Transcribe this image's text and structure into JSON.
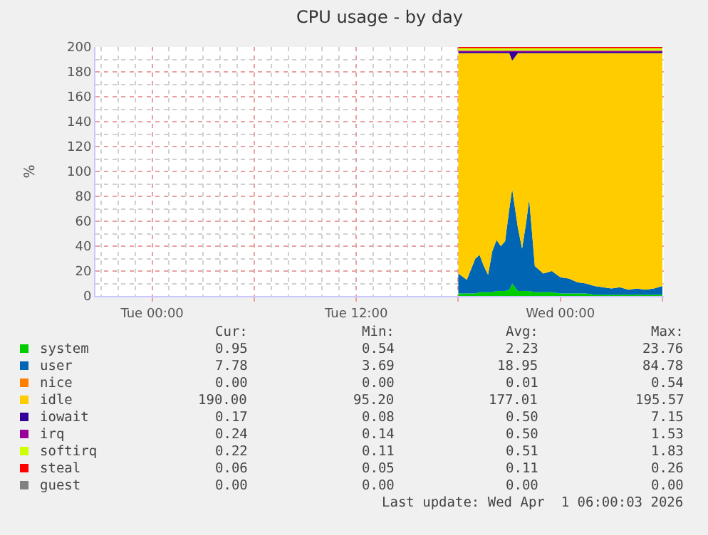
{
  "chart_data": {
    "type": "area",
    "title": "CPU usage - by day",
    "ylabel": "%",
    "stacked": true,
    "grid": true,
    "legend": "bottom",
    "x": [
      "2026-03-31T18:00",
      "2026-03-31T18:30",
      "2026-03-31T19:00",
      "2026-03-31T19:15",
      "2026-03-31T19:30",
      "2026-03-31T19:45",
      "2026-03-31T20:00",
      "2026-03-31T20:15",
      "2026-03-31T20:30",
      "2026-03-31T20:45",
      "2026-03-31T21:00",
      "2026-03-31T21:10",
      "2026-03-31T21:30",
      "2026-03-31T21:45",
      "2026-03-31T22:00",
      "2026-03-31T22:10",
      "2026-03-31T22:30",
      "2026-03-31T23:00",
      "2026-03-31T23:30",
      "2026-04-01T00:00",
      "2026-04-01T00:30",
      "2026-04-01T01:00",
      "2026-04-01T01:30",
      "2026-04-01T02:00",
      "2026-04-01T02:30",
      "2026-04-01T03:00",
      "2026-04-01T03:30",
      "2026-04-01T04:00",
      "2026-04-01T04:30",
      "2026-04-01T05:00",
      "2026-04-01T05:30",
      "2026-04-01T06:00"
    ],
    "xlim": [
      "2026-03-30T20:40",
      "2026-04-01T06:05"
    ],
    "xticks": [
      {
        "value": "2026-03-31T00:00",
        "label": "Tue 00:00"
      },
      {
        "value": "2026-03-31T06:00",
        "label": null
      },
      {
        "value": "2026-03-31T12:00",
        "label": "Tue 12:00"
      },
      {
        "value": "2026-03-31T18:00",
        "label": null
      },
      {
        "value": "2026-04-01T00:00",
        "label": "Wed 00:00"
      },
      {
        "value": "2026-04-01T06:00",
        "label": null
      }
    ],
    "ylim": [
      0,
      200
    ],
    "yticks": [
      0,
      20,
      40,
      60,
      80,
      100,
      120,
      140,
      160,
      180,
      200
    ],
    "series": [
      {
        "name": "system",
        "color": "#00cc00",
        "values": [
          2,
          2,
          2,
          3,
          3,
          3,
          3,
          4,
          4,
          4,
          5,
          10,
          4,
          4,
          4,
          4,
          3,
          3,
          3,
          2,
          2,
          2,
          2,
          1,
          1,
          1,
          1,
          1,
          1,
          1,
          1,
          1
        ]
      },
      {
        "name": "user",
        "color": "#0066b3",
        "values": [
          16,
          11,
          28,
          30,
          21,
          14,
          33,
          41,
          36,
          40,
          65,
          76,
          51,
          34,
          56,
          74,
          21,
          15,
          17,
          13,
          12,
          9,
          8,
          7,
          6,
          5,
          6,
          4,
          5,
          4,
          5,
          7
        ]
      },
      {
        "name": "nice",
        "color": "#ff8000",
        "values": [
          null,
          null,
          null,
          null,
          null,
          null,
          null,
          null,
          null,
          null,
          null,
          null,
          null,
          null,
          null,
          null,
          null,
          null,
          null,
          null,
          null,
          null,
          null,
          null,
          null,
          null,
          null,
          null,
          null,
          null,
          null,
          null
        ]
      },
      {
        "name": "idle",
        "color": "#ffcc00",
        "values": [
          177,
          182,
          165,
          162,
          171,
          178,
          159,
          150,
          155,
          151,
          125,
          103,
          140,
          157,
          135,
          117,
          171,
          177,
          175,
          180,
          181,
          184,
          185,
          187,
          188,
          189,
          188,
          190,
          189,
          190,
          189,
          187
        ]
      },
      {
        "name": "iowait",
        "color": "#330099",
        "values": [
          1,
          1,
          1,
          1,
          1,
          1,
          1,
          1,
          1,
          1,
          1,
          7,
          1,
          1,
          1,
          1,
          1,
          1,
          1,
          1,
          1,
          1,
          1,
          1,
          1,
          1,
          1,
          1,
          1,
          1,
          1,
          1
        ]
      },
      {
        "name": "irq",
        "color": "#990099",
        "values": [
          1,
          1,
          1,
          1,
          1,
          1,
          1,
          1,
          1,
          1,
          1,
          1,
          1,
          1,
          1,
          1,
          1,
          1,
          1,
          1,
          1,
          1,
          1,
          1,
          1,
          1,
          1,
          1,
          1,
          1,
          1,
          1
        ]
      },
      {
        "name": "softirq",
        "color": "#ccff00",
        "values": [
          2,
          2,
          2,
          2,
          2,
          2,
          2,
          2,
          2,
          2,
          2,
          2,
          2,
          2,
          2,
          2,
          2,
          2,
          2,
          2,
          2,
          2,
          2,
          2,
          2,
          2,
          2,
          2,
          2,
          2,
          2,
          2
        ]
      },
      {
        "name": "steal",
        "color": "#ff0000",
        "values": [
          1,
          1,
          1,
          1,
          1,
          1,
          1,
          1,
          1,
          1,
          1,
          1,
          1,
          1,
          1,
          1,
          1,
          1,
          1,
          1,
          1,
          1,
          1,
          1,
          1,
          1,
          1,
          1,
          1,
          1,
          1,
          1
        ]
      },
      {
        "name": "guest",
        "color": "#808080",
        "values": [
          null,
          null,
          null,
          null,
          null,
          null,
          null,
          null,
          null,
          null,
          null,
          null,
          null,
          null,
          null,
          null,
          null,
          null,
          null,
          null,
          null,
          null,
          null,
          null,
          null,
          null,
          null,
          null,
          null,
          null,
          null,
          null
        ]
      }
    ],
    "annotations": [
      "Cur:",
      "Min:",
      "Avg:",
      "Max:",
      "0.95",
      "0.54",
      "2.23",
      "23.76",
      "7.78",
      "3.69",
      "18.95",
      "84.78",
      "0.00",
      "0.00",
      "0.01",
      "0.54",
      "190.00",
      "95.20",
      "177.01",
      "195.57",
      "0.17",
      "0.08",
      "0.50",
      "7.15",
      "0.24",
      "0.14",
      "0.50",
      "1.53",
      "0.22",
      "0.11",
      "0.51",
      "1.83",
      "0.06",
      "0.05",
      "0.11",
      "0.26",
      "0.00",
      "0.00",
      "0.00",
      "0.00",
      "Last update: Wed Apr  1 06:00:03 2026"
    ]
  }
}
